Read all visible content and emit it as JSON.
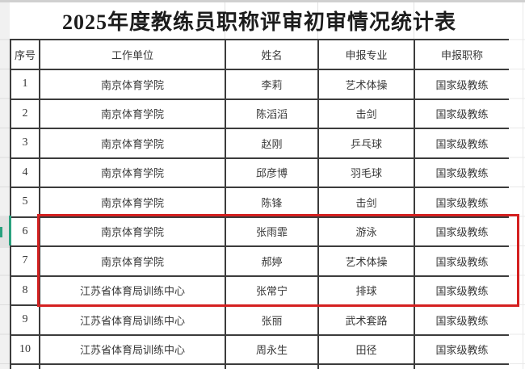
{
  "title": "2025年度教练员职称评审初审情况统计表",
  "table": {
    "column_keys": [
      "index",
      "work-unit",
      "name",
      "applied-major",
      "applied-title"
    ],
    "headers": [
      "序号",
      "工作单位",
      "姓名",
      "申报专业",
      "申报职称"
    ],
    "rows": [
      [
        "1",
        "南京体育学院",
        "李莉",
        "艺术体操",
        "国家级教练"
      ],
      [
        "2",
        "南京体育学院",
        "陈滔滔",
        "击剑",
        "国家级教练"
      ],
      [
        "3",
        "南京体育学院",
        "赵刚",
        "乒乓球",
        "国家级教练"
      ],
      [
        "4",
        "南京体育学院",
        "邱彦博",
        "羽毛球",
        "国家级教练"
      ],
      [
        "5",
        "南京体育学院",
        "陈锋",
        "击剑",
        "国家级教练"
      ],
      [
        "6",
        "南京体育学院",
        "张雨霏",
        "游泳",
        "国家级教练"
      ],
      [
        "7",
        "南京体育学院",
        "郝婷",
        "艺术体操",
        "国家级教练"
      ],
      [
        "8",
        "江苏省体育局训练中心",
        "张常宁",
        "排球",
        "国家级教练"
      ],
      [
        "9",
        "江苏省体育局训练中心",
        "张丽",
        "武术套路",
        "国家级教练"
      ],
      [
        "10",
        "江苏省体育局训练中心",
        "周永生",
        "田径",
        "国家级教练"
      ]
    ],
    "highlighted_row_numbers": [
      6,
      7,
      8
    ],
    "selected_row_number": "6"
  },
  "annotations": {
    "highlight_box_color": "#d42020",
    "selection_accent_color": "#2aa17e"
  }
}
